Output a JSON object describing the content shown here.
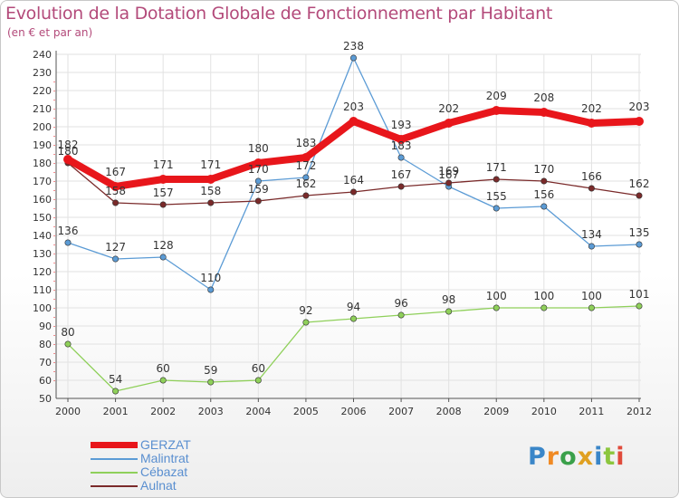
{
  "header": {
    "title": "Evolution de la Dotation Globale de Fonctionnement par Habitant",
    "subtitle": "(en € et par an)"
  },
  "logo": {
    "text": "Proxiti",
    "letters": [
      "P",
      "r",
      "o",
      "x",
      "i",
      "t",
      "i"
    ],
    "colors": [
      "#3a86c8",
      "#f08a24",
      "#3aa04a",
      "#e0a020",
      "#3a86c8",
      "#8cc63e",
      "#e04a3a"
    ]
  },
  "chart_data": {
    "type": "line",
    "x": [
      "2000",
      "2001",
      "2002",
      "2003",
      "2004",
      "2005",
      "2006",
      "2007",
      "2008",
      "2009",
      "2010",
      "2011",
      "2012"
    ],
    "ylim": [
      50,
      240
    ],
    "yticks": [
      50,
      60,
      70,
      80,
      90,
      100,
      110,
      120,
      130,
      140,
      150,
      160,
      170,
      180,
      190,
      200,
      210,
      220,
      230,
      240
    ],
    "grid": true,
    "legend_position": "bottom-left",
    "series": [
      {
        "name": "Malintrat",
        "color": "#5b9bd5",
        "values": [
          136,
          127,
          128,
          110,
          170,
          172,
          238,
          183,
          167,
          155,
          156,
          134,
          135
        ]
      },
      {
        "name": "Cébazat",
        "color": "#8fd05a",
        "values": [
          80,
          54,
          60,
          59,
          60,
          92,
          94,
          96,
          98,
          100,
          100,
          100,
          101
        ]
      },
      {
        "name": "Aulnat",
        "color": "#7a2a2a",
        "values": [
          180,
          158,
          157,
          158,
          159,
          162,
          164,
          167,
          169,
          171,
          170,
          166,
          162
        ]
      },
      {
        "name": "GERZAT",
        "color": "#e8161b",
        "values": [
          182,
          167,
          171,
          171,
          180,
          183,
          203,
          193,
          202,
          209,
          208,
          202,
          203
        ]
      }
    ],
    "legend_order": [
      "GERZAT",
      "Malintrat",
      "Cébazat",
      "Aulnat"
    ]
  }
}
